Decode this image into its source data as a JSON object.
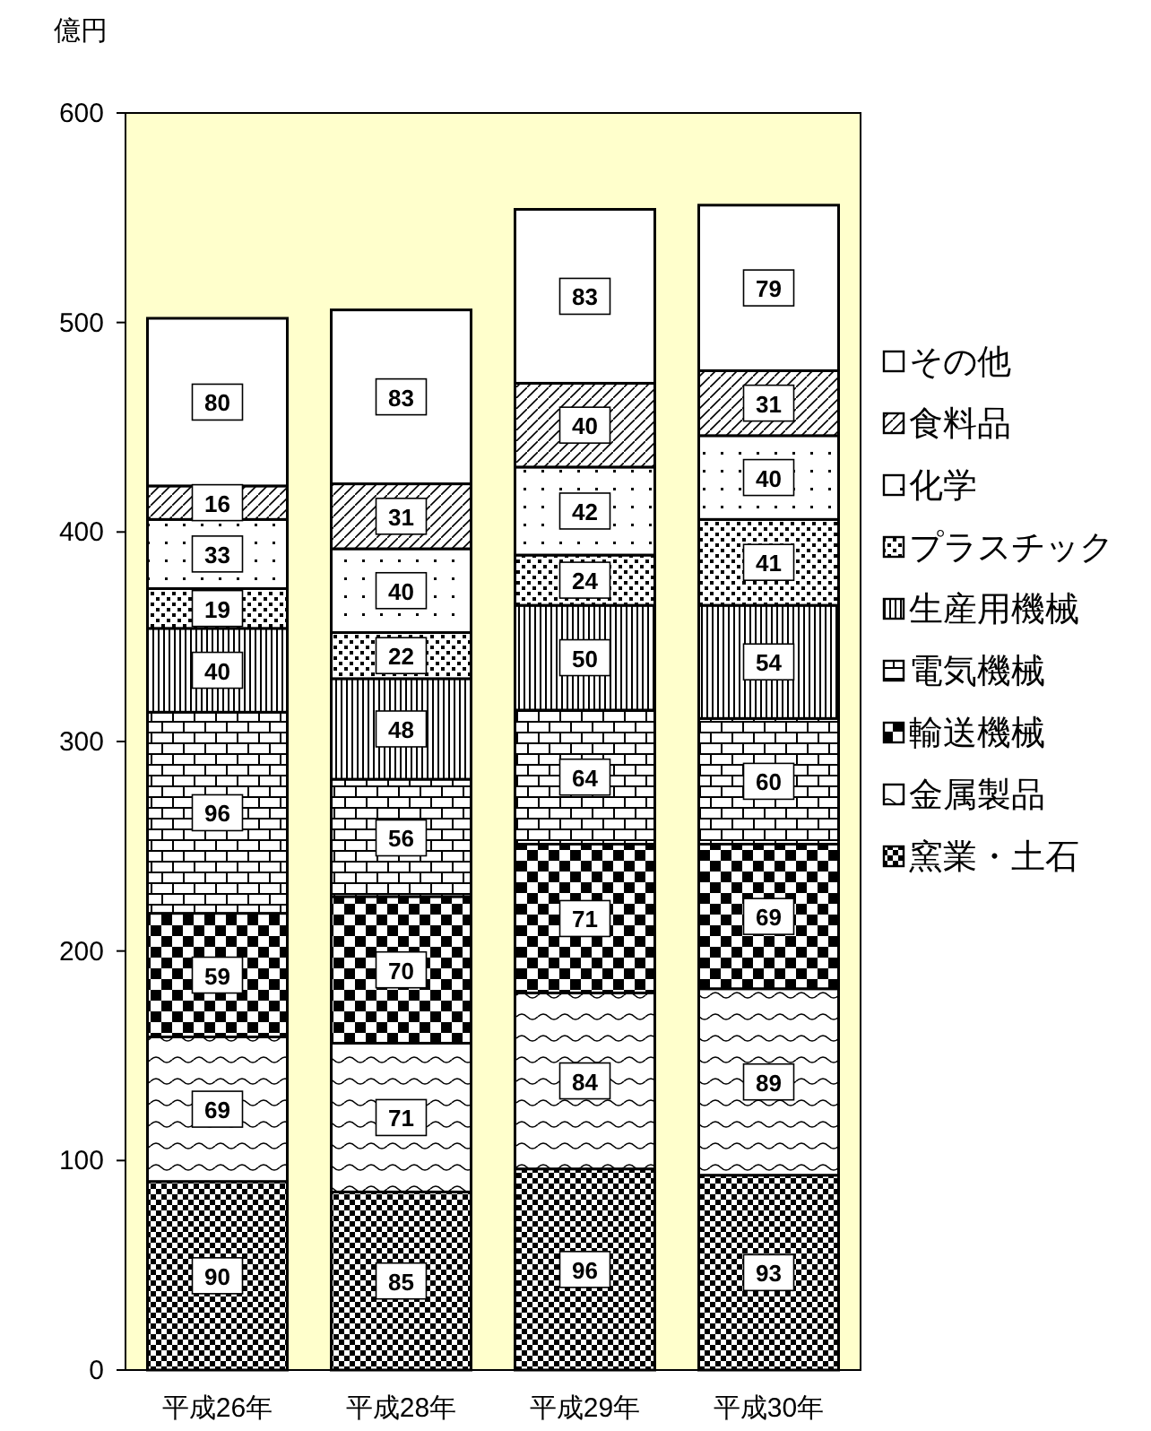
{
  "chart_data": {
    "type": "bar",
    "stacked": true,
    "ylabel": "億円",
    "categories": [
      "平成26年",
      "平成28年",
      "平成29年",
      "平成30年"
    ],
    "series": [
      {
        "name": "窯業・土石",
        "color": "#000000",
        "values": [
          90,
          85,
          96,
          93
        ]
      },
      {
        "name": "金属製品",
        "color": "#000000",
        "values": [
          69,
          71,
          84,
          89
        ]
      },
      {
        "name": "輸送機械",
        "color": "#000000",
        "values": [
          59,
          70,
          71,
          69
        ]
      },
      {
        "name": "電気機械",
        "color": "#000000",
        "values": [
          96,
          56,
          64,
          60
        ]
      },
      {
        "name": "生産用機械",
        "color": "#000000",
        "values": [
          40,
          48,
          50,
          54
        ]
      },
      {
        "name": "プラスチック",
        "color": "#000000",
        "values": [
          19,
          22,
          24,
          41
        ]
      },
      {
        "name": "化学",
        "color": "#000000",
        "values": [
          33,
          40,
          42,
          40
        ]
      },
      {
        "name": "食料品",
        "color": "#000000",
        "values": [
          16,
          31,
          40,
          31
        ]
      },
      {
        "name": "その他",
        "color": "#000000",
        "values": [
          80,
          83,
          83,
          79
        ]
      }
    ],
    "ylim": [
      0,
      600
    ],
    "yticks": [
      0,
      100,
      200,
      300,
      400,
      500,
      600
    ],
    "data_labels": true,
    "legend": "right"
  }
}
